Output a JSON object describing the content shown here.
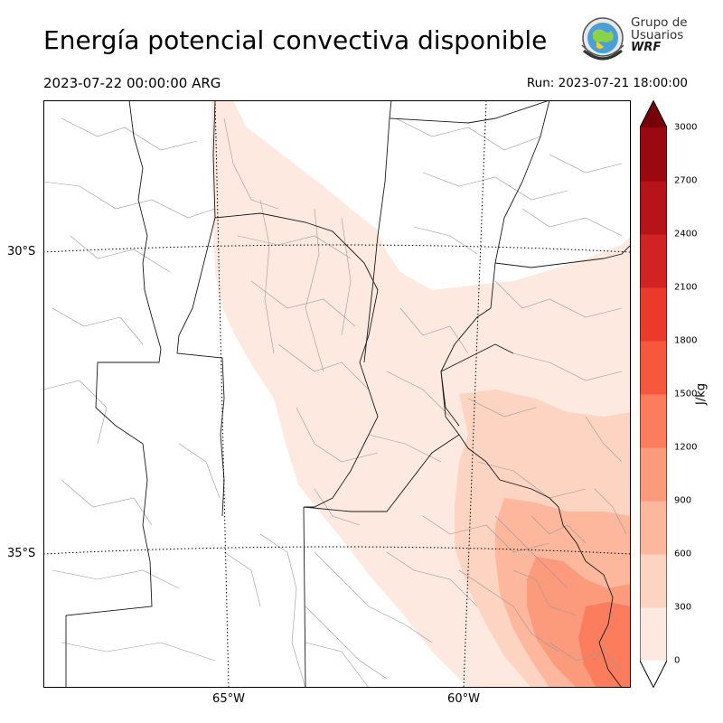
{
  "header": {
    "title": "Energía potencial convectiva disponible",
    "valid_time": "2023-07-22 00:00:00 ARG",
    "run_time": "Run: 2023-07-21 18:00:00"
  },
  "logo": {
    "line1": "Grupo de",
    "line2": "Usuarios",
    "line3": "WRF"
  },
  "map": {
    "variable": "CAPE",
    "lat_labels": [
      {
        "text": "30°S",
        "value": -30
      },
      {
        "text": "35°S",
        "value": -35
      }
    ],
    "lon_labels": [
      {
        "text": "65°W",
        "value": -65
      },
      {
        "text": "60°W",
        "value": -60
      }
    ],
    "shading": [
      {
        "level": "0-300",
        "region": "central-west band"
      },
      {
        "level": "300-600",
        "region": "east and southeast"
      },
      {
        "level": "600-900",
        "region": "southeast / Buenos Aires"
      },
      {
        "level": "900-1200",
        "region": "south-east coast"
      }
    ]
  },
  "colorbar": {
    "units": "J/kg",
    "ticks": [
      "0",
      "300",
      "600",
      "900",
      "1200",
      "1500",
      "1800",
      "2100",
      "2400",
      "2700",
      "3000"
    ],
    "colors": [
      "#fee9e0",
      "#fdd3c2",
      "#fcb79d",
      "#fc9b7c",
      "#fb7d5d",
      "#f6583e",
      "#eb3a2c",
      "#d22324",
      "#b71419",
      "#99090f",
      "#760309"
    ],
    "extend": "both"
  }
}
